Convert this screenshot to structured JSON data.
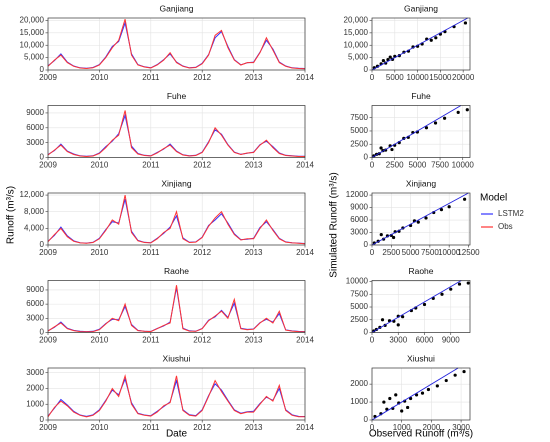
{
  "labels": {
    "left_y": "Runoff (m³/s)",
    "right_y": "Simulated Runoff (m³/s)",
    "legend_title": "Model"
  },
  "chart_data": [
    {
      "type": "line",
      "title": "Ganjiang",
      "xlim": [
        2009,
        2014
      ],
      "xticks": [
        2009,
        2010,
        2011,
        2012,
        2013,
        2014
      ],
      "ylim": [
        0,
        21000
      ],
      "yticks": [
        0,
        {
          "value": 5000,
          "label": "5,000"
        },
        {
          "value": 10000,
          "label": "10,000"
        },
        {
          "value": 15000,
          "label": "15,000"
        },
        {
          "value": 20000,
          "label": "20,000"
        }
      ],
      "grid": true,
      "x": [
        2009,
        2009.125,
        2009.25,
        2009.375,
        2009.5,
        2009.625,
        2009.75,
        2009.875,
        2010,
        2010.125,
        2010.25,
        2010.375,
        2010.5,
        2010.625,
        2010.75,
        2010.875,
        2011,
        2011.125,
        2011.25,
        2011.375,
        2011.5,
        2011.625,
        2011.75,
        2011.875,
        2012,
        2012.125,
        2012.25,
        2012.375,
        2012.5,
        2012.625,
        2012.75,
        2012.875,
        2013,
        2013.125,
        2013.25,
        2013.375,
        2013.5,
        2013.625,
        2013.75,
        2013.875,
        2014
      ],
      "series": [
        {
          "name": "LSTM2",
          "color": "#3333ff",
          "values": [
            1700,
            3800,
            6500,
            3200,
            1600,
            900,
            700,
            1000,
            2200,
            5300,
            9500,
            11500,
            19000,
            6500,
            2200,
            1300,
            900,
            2200,
            4200,
            6500,
            3200,
            1600,
            900,
            1100,
            2700,
            6200,
            13000,
            15500,
            9500,
            4200,
            2100,
            2900,
            3200,
            7200,
            12000,
            8500,
            3200,
            1600,
            900,
            700,
            600
          ]
        },
        {
          "name": "Obs",
          "color": "#ff3333",
          "values": [
            1500,
            4000,
            6000,
            3000,
            1500,
            800,
            600,
            900,
            2000,
            5000,
            9000,
            12000,
            20500,
            6000,
            2000,
            1200,
            800,
            2000,
            4000,
            7000,
            3000,
            1500,
            800,
            1000,
            2500,
            6000,
            14000,
            16000,
            9000,
            4000,
            2000,
            3000,
            3000,
            7000,
            13000,
            8000,
            3000,
            1500,
            800,
            600,
            500
          ]
        }
      ]
    },
    {
      "type": "line",
      "title": "Fuhe",
      "xlim": [
        2009,
        2014
      ],
      "xticks": [
        2009,
        2010,
        2011,
        2012,
        2013,
        2014
      ],
      "ylim": [
        0,
        10500
      ],
      "yticks": [
        0,
        3000,
        6000,
        9000
      ],
      "grid": true,
      "x": [
        2009,
        2009.125,
        2009.25,
        2009.375,
        2009.5,
        2009.625,
        2009.75,
        2009.875,
        2010,
        2010.125,
        2010.25,
        2010.375,
        2010.5,
        2010.625,
        2010.75,
        2010.875,
        2011,
        2011.125,
        2011.25,
        2011.375,
        2011.5,
        2011.625,
        2011.75,
        2011.875,
        2012,
        2012.125,
        2012.25,
        2012.375,
        2012.5,
        2012.625,
        2012.75,
        2012.875,
        2013,
        2013.125,
        2013.25,
        2013.375,
        2013.5,
        2013.625,
        2013.75,
        2013.875,
        2014
      ],
      "series": [
        {
          "name": "LSTM2",
          "color": "#3333ff",
          "values": [
            600,
            1400,
            2700,
            1300,
            700,
            350,
            250,
            350,
            900,
            2200,
            3300,
            4800,
            8500,
            2300,
            800,
            450,
            350,
            1000,
            1700,
            2700,
            1300,
            550,
            350,
            450,
            1100,
            3200,
            5600,
            4700,
            2600,
            1100,
            650,
            850,
            1100,
            2600,
            3300,
            2200,
            900,
            450,
            350,
            250,
            250
          ]
        },
        {
          "name": "Obs",
          "color": "#ff3333",
          "values": [
            500,
            1500,
            2500,
            1200,
            600,
            300,
            200,
            300,
            800,
            2000,
            3500,
            4500,
            9500,
            2000,
            700,
            400,
            300,
            900,
            1800,
            2500,
            1200,
            500,
            300,
            400,
            1000,
            3000,
            6000,
            4500,
            2500,
            1000,
            600,
            900,
            1000,
            2500,
            3500,
            2000,
            800,
            400,
            300,
            200,
            200
          ]
        }
      ]
    },
    {
      "type": "line",
      "title": "Xinjiang",
      "xlim": [
        2009,
        2014
      ],
      "xticks": [
        2009,
        2010,
        2011,
        2012,
        2013,
        2014
      ],
      "ylim": [
        0,
        12500
      ],
      "yticks": [
        0,
        {
          "value": 4000,
          "label": "4,000"
        },
        {
          "value": 8000,
          "label": "8,000"
        },
        {
          "value": 12000,
          "label": "12,000"
        }
      ],
      "grid": true,
      "x": [
        2009,
        2009.125,
        2009.25,
        2009.375,
        2009.5,
        2009.625,
        2009.75,
        2009.875,
        2010,
        2010.125,
        2010.25,
        2010.375,
        2010.5,
        2010.625,
        2010.75,
        2010.875,
        2011,
        2011.125,
        2011.25,
        2011.375,
        2011.5,
        2011.625,
        2011.75,
        2011.875,
        2012,
        2012.125,
        2012.25,
        2012.375,
        2012.5,
        2012.625,
        2012.75,
        2012.875,
        2013,
        2013.125,
        2013.25,
        2013.375,
        2013.5,
        2013.625,
        2013.75,
        2013.875,
        2014
      ],
      "series": [
        {
          "name": "LSTM2",
          "color": "#3333ff",
          "values": [
            900,
            2300,
            4300,
            2200,
            1000,
            550,
            450,
            650,
            1600,
            3700,
            5600,
            5300,
            11000,
            3300,
            1100,
            650,
            550,
            1600,
            2800,
            4300,
            7000,
            1700,
            650,
            750,
            1900,
            4700,
            6000,
            7500,
            5300,
            2700,
            1300,
            1400,
            1600,
            4200,
            5600,
            3700,
            1600,
            750,
            550,
            450,
            350
          ]
        },
        {
          "name": "Obs",
          "color": "#ff3333",
          "values": [
            800,
            2500,
            4000,
            2000,
            900,
            500,
            400,
            600,
            1500,
            3500,
            6000,
            5000,
            12000,
            3000,
            1000,
            600,
            500,
            1500,
            3000,
            4000,
            8000,
            1500,
            600,
            700,
            1800,
            4500,
            6500,
            8000,
            5000,
            2500,
            1200,
            1500,
            1500,
            4000,
            6000,
            3500,
            1500,
            700,
            500,
            400,
            300
          ]
        }
      ]
    },
    {
      "type": "line",
      "title": "Raohe",
      "xlim": [
        2009,
        2014
      ],
      "xticks": [
        2009,
        2010,
        2011,
        2012,
        2013,
        2014
      ],
      "ylim": [
        0,
        11000
      ],
      "yticks": [
        0,
        3000,
        6000,
        9000
      ],
      "grid": true,
      "x": [
        2009,
        2009.125,
        2009.25,
        2009.375,
        2009.5,
        2009.625,
        2009.75,
        2009.875,
        2010,
        2010.125,
        2010.25,
        2010.375,
        2010.5,
        2010.625,
        2010.75,
        2010.875,
        2011,
        2011.125,
        2011.25,
        2011.375,
        2011.5,
        2011.625,
        2011.75,
        2011.875,
        2012,
        2012.125,
        2012.25,
        2012.375,
        2012.5,
        2012.625,
        2012.75,
        2012.875,
        2013,
        2013.125,
        2013.25,
        2013.375,
        2013.5,
        2013.625,
        2013.75,
        2013.875,
        2014
      ],
      "series": [
        {
          "name": "LSTM2",
          "color": "#3333ff",
          "values": [
            350,
            1100,
            2200,
            900,
            450,
            250,
            180,
            250,
            700,
            1900,
            2800,
            2700,
            5500,
            1700,
            450,
            280,
            230,
            850,
            1400,
            2200,
            9500,
            900,
            350,
            280,
            850,
            2600,
            3300,
            4700,
            3200,
            6200,
            900,
            650,
            750,
            2100,
            2800,
            2200,
            4000,
            550,
            330,
            230,
            180
          ]
        },
        {
          "name": "Obs",
          "color": "#ff3333",
          "values": [
            300,
            1200,
            2000,
            800,
            400,
            200,
            150,
            200,
            600,
            1800,
            3000,
            2500,
            6000,
            1500,
            400,
            250,
            200,
            800,
            1500,
            2000,
            10000,
            800,
            300,
            250,
            800,
            2500,
            3500,
            4500,
            3000,
            7000,
            800,
            600,
            700,
            2000,
            3000,
            2000,
            4500,
            500,
            300,
            200,
            150
          ]
        }
      ]
    },
    {
      "type": "line",
      "title": "Xiushui",
      "xlabel": "Date",
      "xlim": [
        2009,
        2014
      ],
      "xticks": [
        2009,
        2010,
        2011,
        2012,
        2013,
        2014
      ],
      "ylim": [
        0,
        3300
      ],
      "yticks": [
        0,
        1000,
        2000,
        3000
      ],
      "grid": true,
      "x": [
        2009,
        2009.125,
        2009.25,
        2009.375,
        2009.5,
        2009.625,
        2009.75,
        2009.875,
        2010,
        2010.125,
        2010.25,
        2010.375,
        2010.5,
        2010.625,
        2010.75,
        2010.875,
        2011,
        2011.125,
        2011.25,
        2011.375,
        2011.5,
        2011.625,
        2011.75,
        2011.875,
        2012,
        2012.125,
        2012.25,
        2012.375,
        2012.5,
        2012.625,
        2012.75,
        2012.875,
        2013,
        2013.125,
        2013.25,
        2013.375,
        2013.5,
        2013.625,
        2013.75,
        2013.875,
        2014
      ],
      "series": [
        {
          "name": "LSTM2",
          "color": "#3333ff",
          "values": [
            250,
            750,
            1300,
            950,
            550,
            320,
            230,
            330,
            650,
            1250,
            1900,
            1600,
            2600,
            1100,
            430,
            320,
            270,
            550,
            850,
            1150,
            2500,
            650,
            330,
            280,
            650,
            1550,
            2300,
            1900,
            1250,
            650,
            430,
            520,
            550,
            1050,
            1450,
            1250,
            2000,
            650,
            330,
            230,
            220
          ]
        },
        {
          "name": "Obs",
          "color": "#ff3333",
          "values": [
            200,
            800,
            1200,
            900,
            500,
            300,
            200,
            300,
            600,
            1200,
            2000,
            1500,
            2800,
            1000,
            400,
            300,
            250,
            500,
            900,
            1100,
            2800,
            600,
            300,
            250,
            600,
            1500,
            2500,
            1800,
            1200,
            600,
            400,
            500,
            500,
            1000,
            1500,
            1200,
            2200,
            600,
            300,
            200,
            200
          ]
        }
      ]
    },
    {
      "type": "scatter",
      "title": "Ganjiang",
      "color": "#000000",
      "line_color": "#2222dd",
      "grid": true,
      "xlim": [
        0,
        21500
      ],
      "xticks": [
        0,
        5000,
        10000,
        15000,
        20000
      ],
      "ylim": [
        0,
        21000
      ],
      "yticks": [
        0,
        {
          "value": 5000,
          "label": "5,000"
        },
        {
          "value": 10000,
          "label": "10,000"
        },
        {
          "value": 15000,
          "label": "15,000"
        },
        {
          "value": 20000,
          "label": "20,000"
        }
      ],
      "x": [
        500,
        1200,
        2000,
        3000,
        3500,
        4500,
        5000,
        6000,
        7000,
        8000,
        9000,
        10000,
        11000,
        12000,
        13000,
        14000,
        15000,
        16000,
        18000,
        20500,
        2500,
        4000
      ],
      "values": [
        900,
        1500,
        2500,
        2800,
        4200,
        4300,
        5500,
        5800,
        7200,
        7600,
        9300,
        9600,
        10500,
        12500,
        12000,
        13000,
        14500,
        15500,
        17500,
        19000,
        3800,
        5200
      ]
    },
    {
      "type": "scatter",
      "title": "Fuhe",
      "color": "#000000",
      "line_color": "#2222dd",
      "grid": true,
      "xlim": [
        0,
        10800
      ],
      "xticks": [
        0,
        2500,
        5000,
        7500,
        10000
      ],
      "ylim": [
        0,
        9800
      ],
      "yticks": [
        0,
        2500,
        5000,
        7500
      ],
      "x": [
        200,
        500,
        800,
        1200,
        1500,
        2000,
        2500,
        3000,
        3500,
        4000,
        4500,
        5000,
        6000,
        7000,
        8000,
        9500,
        10500,
        1000,
        2200
      ],
      "values": [
        300,
        600,
        700,
        1300,
        1400,
        2200,
        2300,
        2800,
        3600,
        3800,
        4700,
        4800,
        5600,
        6500,
        7400,
        8500,
        9000,
        1800,
        1500
      ]
    },
    {
      "type": "scatter",
      "title": "Xinjiang",
      "color": "#000000",
      "line_color": "#2222dd",
      "grid": true,
      "xlim": [
        0,
        12700
      ],
      "xticks": [
        0,
        2500,
        5000,
        7500,
        10000,
        12500
      ],
      "ylim": [
        0,
        12500
      ],
      "yticks": [
        0,
        3000,
        6000,
        9000,
        12000
      ],
      "x": [
        300,
        800,
        1500,
        2000,
        2500,
        3000,
        3500,
        4000,
        5000,
        5500,
        6000,
        7000,
        8000,
        9000,
        10000,
        12000,
        1200,
        2800
      ],
      "values": [
        500,
        900,
        1400,
        2200,
        2300,
        3200,
        3300,
        4100,
        4700,
        5800,
        5500,
        6500,
        7800,
        8500,
        9200,
        11000,
        2500,
        1800
      ]
    },
    {
      "type": "scatter",
      "title": "Raohe",
      "color": "#000000",
      "line_color": "#2222dd",
      "grid": true,
      "xlim": [
        0,
        11200
      ],
      "xticks": [
        0,
        3000,
        6000,
        9000
      ],
      "ylim": [
        0,
        10200
      ],
      "yticks": [
        0,
        2500,
        5000,
        7500,
        10000
      ],
      "x": [
        200,
        500,
        900,
        1500,
        2000,
        2500,
        3000,
        3500,
        4500,
        5000,
        6000,
        7000,
        8000,
        9000,
        10000,
        11000,
        1200,
        3000
      ],
      "values": [
        300,
        600,
        1000,
        1400,
        2300,
        2200,
        3200,
        3100,
        4300,
        4800,
        5500,
        6700,
        7500,
        8500,
        9500,
        9700,
        2500,
        1500
      ]
    },
    {
      "type": "scatter",
      "title": "Xiushui",
      "xlabel": "Observed Runoff (m³/s)",
      "color": "#000000",
      "line_color": "#2222dd",
      "grid": true,
      "xlim": [
        0,
        3300
      ],
      "xticks": [
        0,
        1000,
        2000,
        3000
      ],
      "ylim": [
        0,
        2900
      ],
      "yticks": [
        0,
        1000,
        2000
      ],
      "x": [
        100,
        300,
        500,
        700,
        900,
        1100,
        1300,
        1500,
        1700,
        1900,
        2200,
        2500,
        2800,
        3100,
        400,
        600,
        800,
        1000,
        1200
      ],
      "values": [
        200,
        350,
        600,
        650,
        950,
        1050,
        1200,
        1400,
        1500,
        1700,
        1900,
        2200,
        2500,
        2700,
        1000,
        1200,
        1400,
        500,
        700
      ]
    }
  ]
}
